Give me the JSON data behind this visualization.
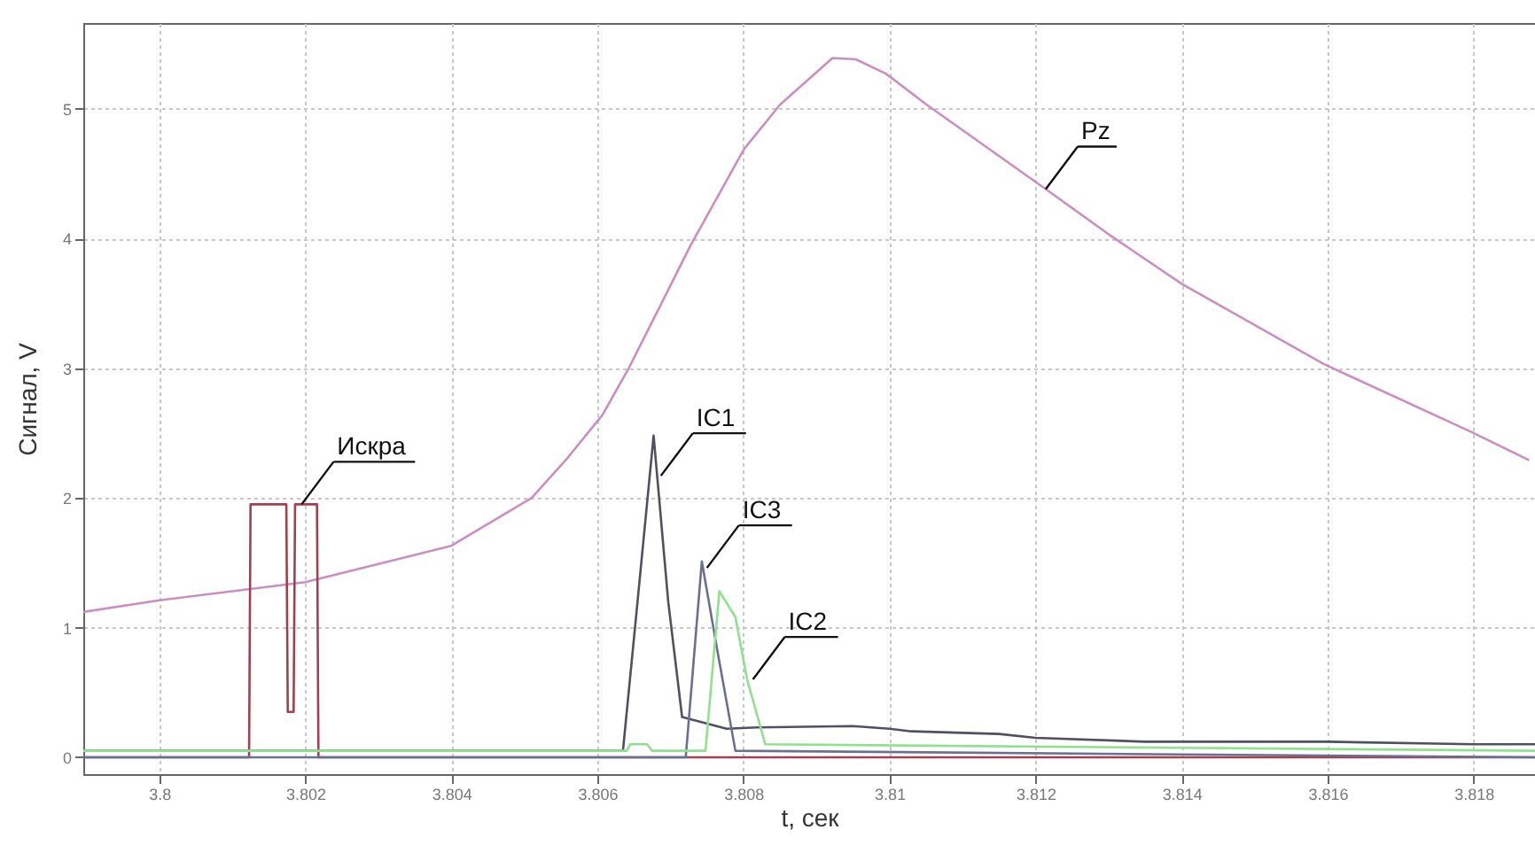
{
  "chart_data": {
    "type": "line",
    "xlabel": "t, сек",
    "ylabel": "Сигнал, V",
    "xlim": [
      3.79896,
      3.81884
    ],
    "ylim": [
      -0.13,
      5.66
    ],
    "xticks": [
      3.8,
      3.802,
      3.804,
      3.806,
      3.808,
      3.81,
      3.812,
      3.814,
      3.816,
      3.818
    ],
    "yticks": [
      0,
      1,
      2,
      3,
      4,
      5
    ],
    "grid": true,
    "line_style": "solid",
    "marker": "none",
    "series": [
      {
        "color": "#c890c0",
        "x": [
          3.79896,
          3.8,
          3.802,
          3.804,
          3.8051,
          3.80558,
          3.80607,
          3.80643,
          3.80728,
          3.80801,
          3.8085,
          3.80922,
          3.80954,
          3.80995,
          3.81051,
          3.81214,
          3.81303,
          3.814,
          3.81595,
          3.81796,
          3.81876
        ],
        "values": [
          1.12,
          1.21,
          1.35,
          1.63,
          2.0,
          2.3,
          2.64,
          3.0,
          3.95,
          4.69,
          5.03,
          5.39,
          5.38,
          5.27,
          5.03,
          4.38,
          4.02,
          3.65,
          3.03,
          2.51,
          2.29
        ]
      },
      {
        "color": "#a04050",
        "x": [
          3.79896,
          3.80123,
          3.80125,
          3.80174,
          3.80176,
          3.80184,
          3.80186,
          3.80216,
          3.80218,
          3.81884
        ],
        "values": [
          0.0,
          0.0,
          1.95,
          1.95,
          0.35,
          0.35,
          1.95,
          1.95,
          0.0,
          0.0
        ]
      },
      {
        "color": "#505060",
        "x": [
          3.79896,
          3.80635,
          3.80655,
          3.80677,
          3.80697,
          3.80716,
          3.80777,
          3.80818,
          3.8095,
          3.81,
          3.8103,
          3.8115,
          3.812,
          3.8135,
          3.816,
          3.818,
          3.81884
        ],
        "values": [
          0.05,
          0.05,
          1.2,
          2.48,
          1.2,
          0.31,
          0.22,
          0.23,
          0.24,
          0.22,
          0.2,
          0.18,
          0.15,
          0.12,
          0.12,
          0.1,
          0.1
        ]
      },
      {
        "color": "#6a7090",
        "x": [
          3.79896,
          3.80721,
          3.80743,
          3.80765,
          3.80789,
          3.81884
        ],
        "values": [
          0.0,
          0.0,
          1.51,
          0.8,
          0.05,
          0.0
        ]
      },
      {
        "color": "#90e090",
        "x": [
          3.79896,
          3.8064,
          3.80645,
          3.80668,
          3.80675,
          3.80748,
          3.80767,
          3.80789,
          3.80805,
          3.8083,
          3.81884
        ],
        "values": [
          0.05,
          0.05,
          0.1,
          0.1,
          0.05,
          0.05,
          1.28,
          1.08,
          0.6,
          0.1,
          0.05
        ]
      }
    ],
    "annotations": [
      {
        "text": "Искра",
        "x": 3.80195,
        "y": 1.95
      },
      {
        "text": "IC1",
        "x": 3.80687,
        "y": 2.17
      },
      {
        "text": "IC3",
        "x": 3.8075,
        "y": 1.46
      },
      {
        "text": "IC2",
        "x": 3.80813,
        "y": 0.6
      },
      {
        "text": "Pz",
        "x": 3.81214,
        "y": 4.38
      }
    ]
  }
}
